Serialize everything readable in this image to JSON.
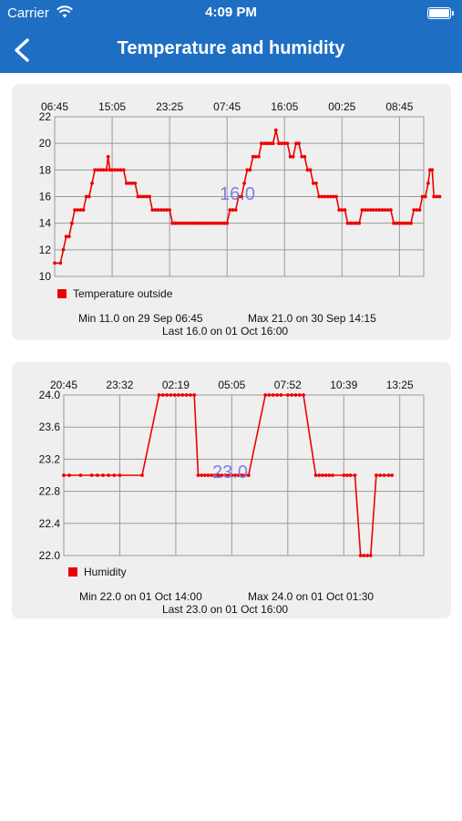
{
  "status_bar": {
    "carrier": "Carrier",
    "time": "4:09 PM",
    "icons": [
      "wifi-icon",
      "battery-icon"
    ]
  },
  "nav": {
    "title": "Temperature and humidity",
    "back_icon": "chevron-left-icon"
  },
  "colors": {
    "nav_bg": "#1e6fc4",
    "series": "#ee0000",
    "current_value": "#7f7fe6",
    "card_bg": "#efefef",
    "grid": "#9a9a9a"
  },
  "charts": [
    {
      "legend": "Temperature outside",
      "current_value": "16.0",
      "min_text": "Min 11.0 on 29 Sep 06:45",
      "max_text": "Max 21.0 on 30 Sep 14:15",
      "last_text": "Last 16.0 on 01 Oct 16:00",
      "x_ticks": [
        "06:45",
        "15:05",
        "23:25",
        "07:45",
        "16:05",
        "00:25",
        "08:45"
      ],
      "y_ticks": [
        "22",
        "20",
        "18",
        "16",
        "14",
        "12",
        "10"
      ]
    },
    {
      "legend": "Humidity",
      "current_value": "23.0",
      "min_text": "Min 22.0 on 01 Oct 14:00",
      "max_text": "Max 24.0 on 01 Oct 01:30",
      "last_text": "Last 23.0 on 01 Oct 16:00",
      "x_ticks": [
        "20:45",
        "23:32",
        "02:19",
        "05:05",
        "07:52",
        "10:39",
        "13:25"
      ],
      "y_ticks": [
        "24.0",
        "23.6",
        "23.2",
        "22.8",
        "22.4",
        "22.0"
      ]
    }
  ],
  "chart_data": [
    {
      "type": "line",
      "series": [
        {
          "name": "Temperature outside"
        }
      ],
      "ylim": [
        10,
        22
      ],
      "x_index_range": [
        0,
        62
      ],
      "x_tick_index": [
        0,
        10,
        20,
        30,
        40,
        50,
        60
      ],
      "points": [
        [
          0,
          11
        ],
        [
          1,
          11
        ],
        [
          1.5,
          12
        ],
        [
          2,
          13
        ],
        [
          2.5,
          13
        ],
        [
          3,
          14
        ],
        [
          3.5,
          15
        ],
        [
          4,
          15
        ],
        [
          4.5,
          15
        ],
        [
          5,
          15
        ],
        [
          5.5,
          16
        ],
        [
          6,
          16
        ],
        [
          6.5,
          17
        ],
        [
          7,
          18
        ],
        [
          7.5,
          18
        ],
        [
          8,
          18
        ],
        [
          8.5,
          18
        ],
        [
          9,
          18
        ],
        [
          9.3,
          19
        ],
        [
          9.6,
          18
        ],
        [
          10,
          18
        ],
        [
          10.5,
          18
        ],
        [
          11,
          18
        ],
        [
          11.5,
          18
        ],
        [
          12,
          18
        ],
        [
          12.5,
          17
        ],
        [
          13,
          17
        ],
        [
          13.5,
          17
        ],
        [
          14,
          17
        ],
        [
          14.5,
          16
        ],
        [
          15,
          16
        ],
        [
          15.5,
          16
        ],
        [
          16,
          16
        ],
        [
          16.5,
          16
        ],
        [
          17,
          15
        ],
        [
          17.5,
          15
        ],
        [
          18,
          15
        ],
        [
          18.5,
          15
        ],
        [
          19,
          15
        ],
        [
          19.5,
          15
        ],
        [
          20,
          15
        ],
        [
          20.5,
          14
        ],
        [
          21,
          14
        ],
        [
          21.5,
          14
        ],
        [
          22,
          14
        ],
        [
          22.5,
          14
        ],
        [
          23,
          14
        ],
        [
          23.5,
          14
        ],
        [
          24,
          14
        ],
        [
          24.5,
          14
        ],
        [
          25,
          14
        ],
        [
          25.5,
          14
        ],
        [
          26,
          14
        ],
        [
          26.5,
          14
        ],
        [
          27,
          14
        ],
        [
          27.5,
          14
        ],
        [
          28,
          14
        ],
        [
          28.5,
          14
        ],
        [
          29,
          14
        ],
        [
          29.5,
          14
        ],
        [
          30,
          14
        ],
        [
          30.5,
          15
        ],
        [
          31,
          15
        ],
        [
          31.5,
          15
        ],
        [
          32,
          16
        ],
        [
          32.5,
          16
        ],
        [
          33,
          17
        ],
        [
          33.5,
          18
        ],
        [
          34,
          18
        ],
        [
          34.5,
          19
        ],
        [
          35,
          19
        ],
        [
          35.5,
          19
        ],
        [
          36,
          20
        ],
        [
          36.5,
          20
        ],
        [
          37,
          20
        ],
        [
          37.5,
          20
        ],
        [
          38,
          20
        ],
        [
          38.5,
          21
        ],
        [
          39,
          20
        ],
        [
          39.5,
          20
        ],
        [
          40,
          20
        ],
        [
          40.5,
          20
        ],
        [
          41,
          19
        ],
        [
          41.5,
          19
        ],
        [
          42,
          20
        ],
        [
          42.5,
          20
        ],
        [
          43,
          19
        ],
        [
          43.5,
          19
        ],
        [
          44,
          18
        ],
        [
          44.5,
          18
        ],
        [
          45,
          17
        ],
        [
          45.5,
          17
        ],
        [
          46,
          16
        ],
        [
          46.5,
          16
        ],
        [
          47,
          16
        ],
        [
          47.5,
          16
        ],
        [
          48,
          16
        ],
        [
          48.5,
          16
        ],
        [
          49,
          16
        ],
        [
          49.5,
          15
        ],
        [
          50,
          15
        ],
        [
          50.5,
          15
        ],
        [
          51,
          14
        ],
        [
          51.5,
          14
        ],
        [
          52,
          14
        ],
        [
          52.5,
          14
        ],
        [
          53,
          14
        ],
        [
          53.5,
          15
        ],
        [
          54,
          15
        ],
        [
          54.5,
          15
        ],
        [
          55,
          15
        ],
        [
          55.5,
          15
        ],
        [
          56,
          15
        ],
        [
          56.5,
          15
        ],
        [
          57,
          15
        ],
        [
          57.5,
          15
        ],
        [
          58,
          15
        ],
        [
          58.5,
          15
        ],
        [
          59,
          14
        ],
        [
          59.5,
          14
        ],
        [
          60,
          14
        ],
        [
          60.5,
          14
        ],
        [
          61,
          14
        ],
        [
          61.5,
          14
        ],
        [
          62,
          14
        ],
        [
          62.5,
          15
        ],
        [
          63,
          15
        ],
        [
          63.5,
          15
        ],
        [
          64,
          16
        ],
        [
          64.5,
          16
        ],
        [
          65,
          17
        ],
        [
          65.3,
          18
        ],
        [
          65.7,
          18
        ],
        [
          66,
          16
        ],
        [
          66.5,
          16
        ],
        [
          67,
          16
        ]
      ]
    },
    {
      "type": "line",
      "series": [
        {
          "name": "Humidity"
        }
      ],
      "ylim": [
        22.0,
        24.0
      ],
      "x_index_range": [
        0,
        62
      ],
      "x_tick_index": [
        0,
        10,
        20,
        30,
        40,
        50,
        60
      ],
      "points": [
        [
          0,
          23.0
        ],
        [
          1,
          23.0
        ],
        [
          3,
          23.0
        ],
        [
          5,
          23.0
        ],
        [
          6,
          23.0
        ],
        [
          7,
          23.0
        ],
        [
          8,
          23.0
        ],
        [
          9,
          23.0
        ],
        [
          10,
          23.0
        ],
        [
          14,
          23.0
        ],
        [
          17,
          24.0
        ],
        [
          17.7,
          24.0
        ],
        [
          18.4,
          24.0
        ],
        [
          19.1,
          24.0
        ],
        [
          19.8,
          24.0
        ],
        [
          20.5,
          24.0
        ],
        [
          21.2,
          24.0
        ],
        [
          21.9,
          24.0
        ],
        [
          22.6,
          24.0
        ],
        [
          23.3,
          24.0
        ],
        [
          24,
          23.0
        ],
        [
          24.6,
          23.0
        ],
        [
          25.2,
          23.0
        ],
        [
          25.8,
          23.0
        ],
        [
          26.4,
          23.0
        ],
        [
          27,
          23.0
        ],
        [
          27.6,
          23.0
        ],
        [
          28.2,
          23.0
        ],
        [
          28.8,
          23.0
        ],
        [
          29.4,
          23.0
        ],
        [
          30,
          23.0
        ],
        [
          30.6,
          23.0
        ],
        [
          31.2,
          23.0
        ],
        [
          31.8,
          23.0
        ],
        [
          32.4,
          23.0
        ],
        [
          33,
          23.0
        ],
        [
          36,
          24.0
        ],
        [
          36.7,
          24.0
        ],
        [
          37.4,
          24.0
        ],
        [
          38.1,
          24.0
        ],
        [
          38.8,
          24.0
        ],
        [
          40,
          24.0
        ],
        [
          40.7,
          24.0
        ],
        [
          41.4,
          24.0
        ],
        [
          42.1,
          24.0
        ],
        [
          42.8,
          24.0
        ],
        [
          45,
          23.0
        ],
        [
          45.6,
          23.0
        ],
        [
          46.2,
          23.0
        ],
        [
          46.8,
          23.0
        ],
        [
          47.4,
          23.0
        ],
        [
          48,
          23.0
        ],
        [
          50,
          23.0
        ],
        [
          50.6,
          23.0
        ],
        [
          51.2,
          23.0
        ],
        [
          52,
          23.0
        ],
        [
          53,
          22.0
        ],
        [
          53.6,
          22.0
        ],
        [
          54.2,
          22.0
        ],
        [
          54.8,
          22.0
        ],
        [
          55.8,
          23.0
        ],
        [
          56.5,
          23.0
        ],
        [
          57.2,
          23.0
        ],
        [
          58,
          23.0
        ],
        [
          58.6,
          23.0
        ]
      ]
    }
  ]
}
